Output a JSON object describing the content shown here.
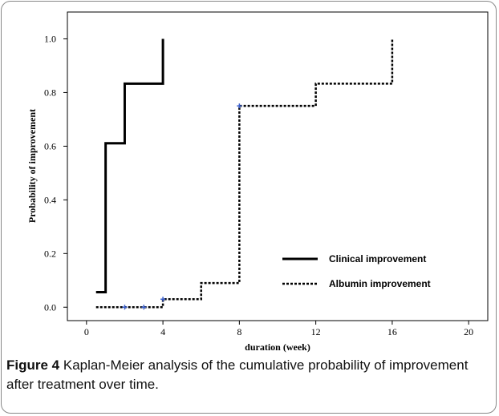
{
  "chart_data": {
    "type": "step",
    "xlabel": "duration (week)",
    "ylabel": "Probability of improvement",
    "xlim": [
      -1,
      21
    ],
    "xticks": [
      0,
      4,
      8,
      12,
      16,
      20
    ],
    "ylim": [
      -0.05,
      1.1
    ],
    "yticks": [
      {
        "value": 0,
        "label": "0.0"
      },
      0.2,
      0.4,
      0.6,
      0.8,
      {
        "value": 1,
        "label": "1.0"
      }
    ],
    "series": [
      {
        "name": "Clinical improvement",
        "color": "#000000",
        "x": [
          0.5,
          1,
          1,
          2,
          2,
          4,
          4
        ],
        "values": [
          0.056,
          0.056,
          0.611,
          0.611,
          0.833,
          0.833,
          1.0
        ]
      },
      {
        "name": "Albumin improvement",
        "color": "#000000",
        "x": [
          0.5,
          4,
          4,
          6,
          6,
          8,
          8,
          12,
          12,
          16,
          16
        ],
        "values": [
          0,
          0,
          0.03,
          0.03,
          0.09,
          0.09,
          0.75,
          0.75,
          0.833,
          0.833,
          1.0
        ],
        "censor_color": "#3a5fcd",
        "censor_x": [
          2,
          3,
          4,
          8
        ],
        "censor_values": [
          0,
          0,
          0.03,
          0.75
        ]
      }
    ]
  },
  "caption": {
    "label": "Figure 4",
    "text": "Kaplan-Meier analysis of the cumulative probability of improvement after treatment over time."
  }
}
